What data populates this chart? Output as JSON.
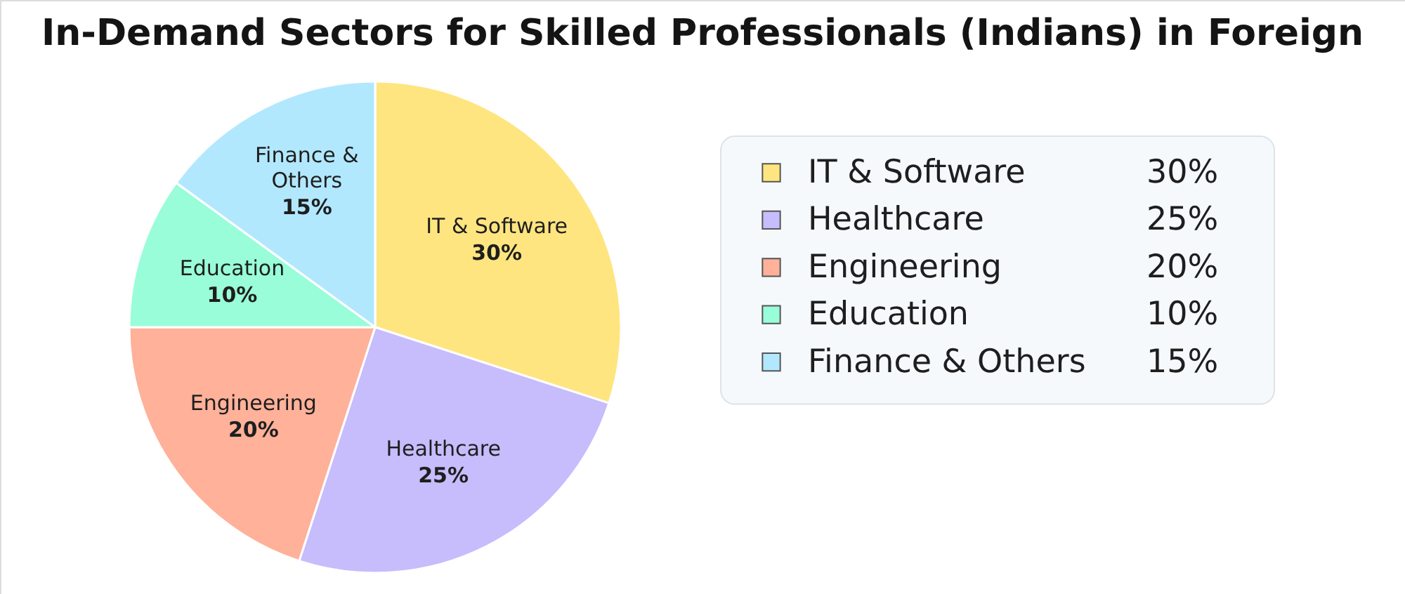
{
  "chart_data": {
    "type": "pie",
    "title": "In-Demand Sectors for Skilled Professionals (Indians) in Foreign",
    "categories": [
      "IT & Software",
      "Healthcare",
      "Engineering",
      "Education",
      "Finance & Others"
    ],
    "values": [
      30,
      25,
      20,
      10,
      15
    ],
    "colors": [
      "#ffe580",
      "#c7bcfc",
      "#ffb199",
      "#99fdd9",
      "#b2e8fe"
    ],
    "value_labels": [
      "30%",
      "25%",
      "20%",
      "10%",
      "15%"
    ],
    "legend": "right"
  }
}
